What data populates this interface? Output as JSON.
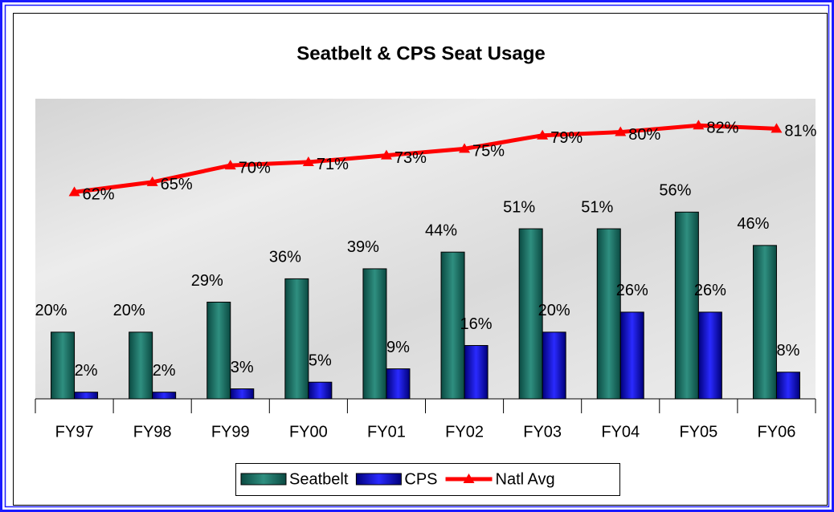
{
  "chart_data": {
    "type": "bar",
    "title": "Seatbelt & CPS Seat Usage",
    "categories": [
      "FY97",
      "FY98",
      "FY99",
      "FY00",
      "FY01",
      "FY02",
      "FY03",
      "FY04",
      "FY05",
      "FY06"
    ],
    "ylim": [
      0,
      90
    ],
    "legend": "bottom",
    "series": [
      {
        "name": "Seatbelt",
        "type": "bar",
        "color": "#1f7a6e",
        "values": [
          20,
          20,
          29,
          36,
          39,
          44,
          51,
          51,
          56,
          46
        ],
        "value_labels": [
          "20%",
          "20%",
          "29%",
          "36%",
          "39%",
          "44%",
          "51%",
          "51%",
          "56%",
          "46%"
        ]
      },
      {
        "name": "CPS",
        "type": "bar",
        "color": "#1414c8",
        "values": [
          2,
          2,
          3,
          5,
          9,
          16,
          20,
          26,
          26,
          8
        ],
        "value_labels": [
          "2%",
          "2%",
          "3%",
          "5%",
          "9%",
          "16%",
          "20%",
          "26%",
          "26%",
          "8%"
        ]
      },
      {
        "name": "Natl Avg",
        "type": "line",
        "color": "#ff0000",
        "values": [
          62,
          65,
          70,
          71,
          73,
          75,
          79,
          80,
          82,
          81
        ],
        "value_labels": [
          "62%",
          "65%",
          "70%",
          "71%",
          "73%",
          "75%",
          "79%",
          "80%",
          "82%",
          "81%"
        ]
      }
    ]
  }
}
